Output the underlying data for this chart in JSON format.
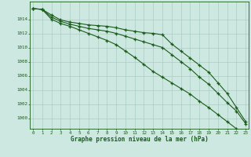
{
  "xlabel": "Graphe pression niveau de la mer (hPa)",
  "background_color": "#cce8e0",
  "grid_color": "#aaccc4",
  "line_color": "#1a5c1a",
  "x": [
    0,
    1,
    2,
    3,
    4,
    5,
    6,
    7,
    8,
    9,
    10,
    11,
    12,
    13,
    14,
    15,
    16,
    17,
    18,
    19,
    20,
    21,
    22,
    23
  ],
  "series1": [
    1015.5,
    1015.4,
    1014.6,
    1013.9,
    1013.6,
    1013.4,
    1013.2,
    1013.1,
    1013.0,
    1012.8,
    1012.5,
    1012.3,
    1012.1,
    1012.0,
    1011.8,
    1010.5,
    1009.5,
    1008.5,
    1007.5,
    1006.5,
    1005.0,
    1003.5,
    1001.5,
    999.5
  ],
  "series2": [
    1015.5,
    1015.4,
    1014.3,
    1013.7,
    1013.3,
    1013.0,
    1012.7,
    1012.5,
    1012.3,
    1012.0,
    1011.6,
    1011.2,
    1010.8,
    1010.4,
    1010.0,
    1009.0,
    1008.0,
    1007.0,
    1005.8,
    1004.8,
    1003.5,
    1002.2,
    1001.0,
    999.2
  ],
  "series3": [
    1015.5,
    1015.4,
    1014.0,
    1013.4,
    1013.0,
    1012.5,
    1012.0,
    1011.5,
    1011.0,
    1010.4,
    1009.5,
    1008.6,
    1007.6,
    1006.6,
    1005.8,
    1005.0,
    1004.2,
    1003.4,
    1002.4,
    1001.5,
    1000.5,
    999.5,
    998.5,
    998.0
  ],
  "ylim": [
    998.5,
    1016.5
  ],
  "yticks": [
    1000,
    1002,
    1004,
    1006,
    1008,
    1010,
    1012,
    1014
  ],
  "xlim": [
    -0.3,
    23.3
  ],
  "xticks": [
    0,
    1,
    2,
    3,
    4,
    5,
    6,
    7,
    8,
    9,
    10,
    11,
    12,
    13,
    14,
    15,
    16,
    17,
    18,
    19,
    20,
    21,
    22,
    23
  ],
  "marker": "+",
  "markersize": 3.5,
  "linewidth": 0.8
}
